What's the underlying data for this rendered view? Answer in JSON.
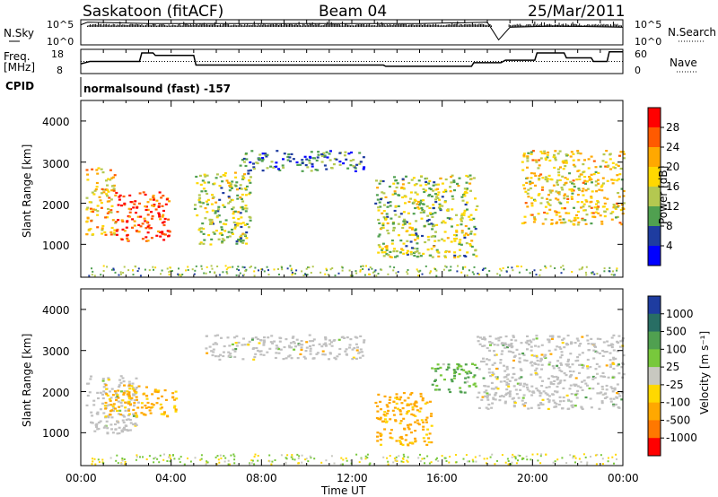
{
  "header": {
    "radar": "Saskatoon (fitACF)",
    "beam": "Beam 04",
    "date": "25/Mar/2011"
  },
  "params": {
    "nsky_label": "N.Sky",
    "nsky_ticks": [
      "10^5",
      "10^0"
    ],
    "nsearch_label": "N.Search",
    "nsearch_ticks": [
      "10^5",
      "10^0"
    ],
    "freq_label": "Freq.",
    "freq_unit": "[MHz]",
    "freq_ticks": [
      "18",
      "8"
    ],
    "nave_label": "Nave",
    "nave_ticks": [
      "60",
      "0"
    ],
    "cpid_label": "CPID",
    "cpid_value": "normalsound (fast) -157"
  },
  "panels": {
    "power": {
      "ylabel": "Slant Range [km]",
      "yticks": [
        "4000",
        "3000",
        "2000",
        "1000"
      ],
      "cbar_label": "Power [dB]",
      "cbar_ticks": [
        "28",
        "24",
        "20",
        "16",
        "12",
        "8",
        "4"
      ],
      "cbar_colors": [
        "#ff0000",
        "#ff5a00",
        "#ffa800",
        "#ffd800",
        "#b4c850",
        "#50a050",
        "#1e3ca0",
        "#0000ff"
      ]
    },
    "velocity": {
      "ylabel": "Slant Range [km]",
      "yticks": [
        "4000",
        "3000",
        "2000",
        "1000"
      ],
      "cbar_label": "Velocity [m s⁻¹]",
      "cbar_ticks": [
        "1000",
        "500",
        "100",
        "25",
        "-25",
        "-100",
        "-500",
        "-1000"
      ],
      "cbar_colors": [
        "#1e3ca0",
        "#286e64",
        "#50a050",
        "#78c83c",
        "#c8c8c0",
        "#ffd800",
        "#ffa800",
        "#ff7800",
        "#ff0000"
      ],
      "ground_scatter_color": "#c0c0c0"
    }
  },
  "xaxis": {
    "label": "Time UT",
    "ticks": [
      "00:00",
      "04:00",
      "08:00",
      "12:00",
      "16:00",
      "20:00",
      "00:00"
    ]
  },
  "chart_data": [
    {
      "type": "line",
      "title": "N.Sky / N.Search",
      "x_range": [
        "00:00",
        "24:00"
      ],
      "series": [
        {
          "name": "N.Sky",
          "x": [
            0,
            0.3,
            3,
            6,
            9,
            12,
            15,
            18,
            18.5,
            19,
            21,
            24
          ],
          "y": [
            0.8,
            0.9,
            0.85,
            0.85,
            0.85,
            0.85,
            0.85,
            0.9,
            0.2,
            0.7,
            0.75,
            0.7
          ]
        }
      ]
    },
    {
      "type": "line",
      "title": "Freq. / Nave",
      "series": [
        {
          "name": "Freq.",
          "x": [
            0,
            0.4,
            2.6,
            2.7,
            3.2,
            3.3,
            5.0,
            5.1,
            13.4,
            13.5,
            17.3,
            17.4,
            18.6,
            18.8,
            20.1,
            20.2,
            21.4,
            21.5,
            22.6,
            22.7,
            23.3,
            23.4,
            24
          ],
          "y": [
            12.0,
            13.0,
            13.0,
            16.5,
            16.5,
            15.5,
            15.5,
            11.5,
            11.5,
            11.0,
            11.0,
            12.5,
            12.5,
            13.5,
            13.5,
            16.5,
            16.5,
            14.5,
            14.5,
            13.0,
            13.0,
            17.0,
            17.0
          ]
        },
        {
          "name": "Nave",
          "x": [
            0,
            24
          ],
          "y": [
            30,
            30
          ]
        }
      ]
    },
    {
      "type": "heatmap",
      "title": "Power [dB]",
      "x_range_hours": [
        0,
        24
      ],
      "y_range_km": [
        200,
        4500
      ],
      "colorbar": [
        4,
        8,
        12,
        16,
        20,
        24,
        28
      ],
      "features": [
        {
          "t": [
            0.2,
            1.5
          ],
          "range_km": [
            1200,
            2900
          ],
          "level_db": 18
        },
        {
          "t": [
            1.5,
            3.9
          ],
          "range_km": [
            1100,
            2300
          ],
          "level_db": 26
        },
        {
          "t": [
            5.0,
            7.5
          ],
          "range_km": [
            1000,
            2800
          ],
          "level_db": 12
        },
        {
          "t": [
            7.0,
            12.5
          ],
          "range_km": [
            2800,
            3300
          ],
          "level_db": 6
        },
        {
          "t": [
            13.0,
            17.5
          ],
          "range_km": [
            700,
            2700
          ],
          "level_db": 12
        },
        {
          "t": [
            19.5,
            24.0
          ],
          "range_km": [
            1500,
            3300
          ],
          "level_db": 16
        }
      ]
    },
    {
      "type": "heatmap",
      "title": "Velocity [m s⁻¹]",
      "x_range_hours": [
        0,
        24
      ],
      "y_range_km": [
        200,
        4500
      ],
      "colorbar": [
        -1000,
        -500,
        -100,
        -25,
        25,
        100,
        500,
        1000
      ],
      "features": [
        {
          "t": [
            0.2,
            2.5
          ],
          "range_km": [
            1000,
            2400
          ],
          "velocity_ms": 0
        },
        {
          "t": [
            1.0,
            4.2
          ],
          "range_km": [
            1400,
            2200
          ],
          "velocity_ms": -120
        },
        {
          "t": [
            5.5,
            12.5
          ],
          "range_km": [
            2800,
            3400
          ],
          "velocity_ms": 0
        },
        {
          "t": [
            13.0,
            15.5
          ],
          "range_km": [
            700,
            2000
          ],
          "velocity_ms": -150
        },
        {
          "t": [
            15.5,
            17.5
          ],
          "range_km": [
            2000,
            2700
          ],
          "velocity_ms": 100
        },
        {
          "t": [
            17.5,
            24.0
          ],
          "range_km": [
            1600,
            3400
          ],
          "velocity_ms": 0
        }
      ]
    }
  ]
}
